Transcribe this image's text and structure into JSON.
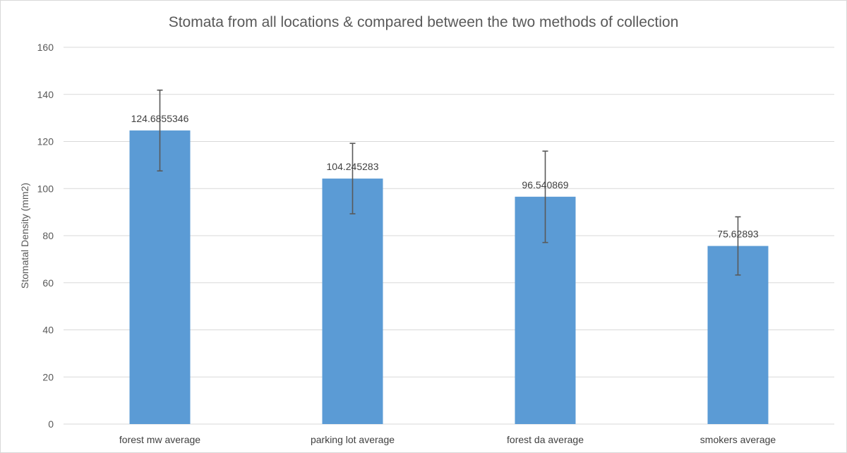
{
  "chart_data": {
    "type": "bar",
    "title": "Stomata from all locations & compared between the two methods of collection",
    "xlabel": "",
    "ylabel": "Stomatal Density (mm2)",
    "ylim": [
      0,
      160
    ],
    "yticks": [
      0,
      20,
      40,
      60,
      80,
      100,
      120,
      140,
      160
    ],
    "grid": true,
    "legend": "none",
    "categories": [
      "forest mw average",
      "parking lot average",
      "forest da average",
      "smokers average"
    ],
    "values": [
      124.6855346,
      104.245283,
      96.540869,
      75.62893
    ],
    "data_labels": [
      "124.6855346",
      "104.245283",
      "96.540869",
      "75.62893"
    ],
    "error_bars": [
      {
        "low": 107.5,
        "high": 141.8
      },
      {
        "low": 89.3,
        "high": 119.2
      },
      {
        "low": 77.1,
        "high": 115.9
      },
      {
        "low": 63.3,
        "high": 88.0
      }
    ],
    "colors": {
      "bar": "#5b9bd5",
      "grid": "#d9d9d9",
      "error_bar": "#595959",
      "frame": "#d9d9d9"
    }
  }
}
